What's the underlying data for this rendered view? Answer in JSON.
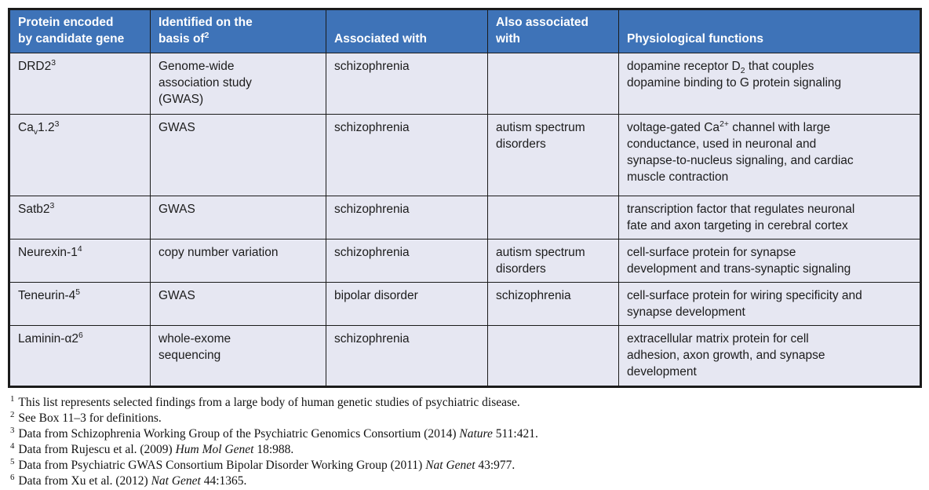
{
  "colors": {
    "header_bg": "#3e73b8",
    "header_text": "#ffffff",
    "row_bg": "#e6e7f2",
    "border": "#1b1b1b",
    "body_text": "#1c1c1c"
  },
  "table": {
    "headers": [
      "Protein encoded<br>by candidate gene",
      "Identified on the<br>basis of<sup>2</sup>",
      "Associated with",
      "Also associated<br>with",
      "Physiological functions"
    ],
    "rows": [
      {
        "protein": "DRD2<sup>3</sup>",
        "basis": "Genome-wide<br>association study<br>(GWAS)",
        "associated": "schizophrenia",
        "also": "",
        "functions": "dopamine receptor D<sub>2</sub> that couples<br>dopamine binding to G protein signaling"
      },
      {
        "protein": "Ca<sub>v</sub>1.2<sup>3</sup>",
        "basis": "GWAS",
        "associated": "schizophrenia",
        "also": "autism spectrum<br>disorders",
        "functions": "voltage-gated Ca<sup>2+</sup> channel with large<br>conductance, used in neuronal and<br>synapse-to-nucleus signaling, and cardiac<br>muscle contraction"
      },
      {
        "protein": "Satb2<sup>3</sup>",
        "basis": "GWAS",
        "associated": "schizophrenia",
        "also": "",
        "functions": "transcription factor that regulates neuronal<br>fate and axon targeting in cerebral cortex"
      },
      {
        "protein": "Neurexin-1<sup>4</sup>",
        "basis": "copy number variation",
        "associated": "schizophrenia",
        "also": "autism spectrum<br>disorders",
        "functions": "cell-surface protein for synapse<br>development and trans-synaptic signaling"
      },
      {
        "protein": "Teneurin-4<sup>5</sup>",
        "basis": "GWAS",
        "associated": "bipolar disorder",
        "also": "schizophrenia",
        "functions": "cell-surface protein for wiring specificity and<br>synapse development"
      },
      {
        "protein": "Laminin-α2<sup>6</sup>",
        "basis": "whole-exome<br>sequencing",
        "associated": "schizophrenia",
        "also": "",
        "functions": "extracellular matrix protein for cell<br>adhesion, axon growth, and synapse<br>development"
      }
    ]
  },
  "footnotes": [
    {
      "marker": "1",
      "text": "This list represents selected findings from a large body of human genetic studies of psychiatric disease."
    },
    {
      "marker": "2",
      "text": "See Box 11–3 for definitions."
    },
    {
      "marker": "3",
      "text": "Data from Schizophrenia Working Group of the Psychiatric Genomics Consortium (2014) <i>Nature</i> 511:421."
    },
    {
      "marker": "4",
      "text": "Data from Rujescu et al. (2009) <i>Hum Mol Genet</i> 18:988."
    },
    {
      "marker": "5",
      "text": "Data from Psychiatric GWAS Consortium Bipolar Disorder Working Group (2011) <i>Nat Genet</i> 43:977."
    },
    {
      "marker": "6",
      "text": "Data from Xu et al. (2012) <i>Nat Genet</i> 44:1365."
    }
  ]
}
